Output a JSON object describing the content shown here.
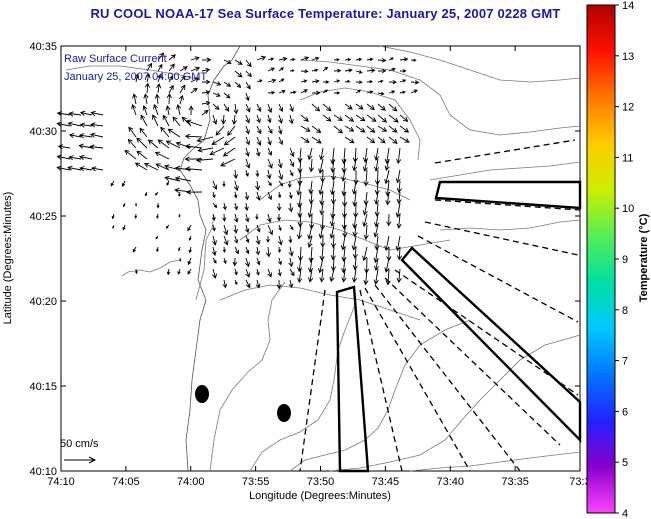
{
  "title": "RU COOL  NOAA-17  Sea Surface Temperature:  January 25, 2007 0228 GMT",
  "overlay": {
    "line1": "Raw Surface Current",
    "line2": "January 25, 2007 04:00 GMT"
  },
  "scale_arrow_label": "50 cm/s",
  "x_axis": {
    "title": "Longitude (Degrees:Minutes)",
    "ticks": [
      "74:10",
      "74:05",
      "74:00",
      "73:55",
      "73:50",
      "73:45",
      "73:40",
      "73:35",
      "73:3"
    ]
  },
  "y_axis": {
    "title": "Latitude (Degrees:Minutes)",
    "ticks": [
      "40:35",
      "40:30",
      "40:25",
      "40:20",
      "40:15",
      "40:10"
    ]
  },
  "colorbar": {
    "title": "Temperature (°C)",
    "ticks": [
      "14",
      "13",
      "12",
      "11",
      "10",
      "9",
      "8",
      "7",
      "6",
      "5",
      "4"
    ],
    "colors": [
      "#ff44ff",
      "#8800cc",
      "#2222ff",
      "#0077ff",
      "#00c8ff",
      "#00e0a0",
      "#55ee55",
      "#ccee00",
      "#ffcc00",
      "#ff7700",
      "#ff1100",
      "#b00000"
    ]
  }
}
